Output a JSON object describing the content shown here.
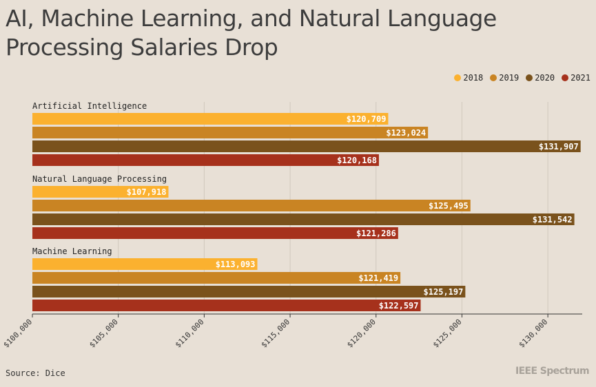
{
  "title": "AI, Machine Learning, and Natural Language Processing Salaries Drop",
  "source": "Source: Dice",
  "brand": "IEEE Spectrum",
  "legend": [
    "2018",
    "2019",
    "2020",
    "2021"
  ],
  "colors": {
    "2018": "#fbb12f",
    "2019": "#c98423",
    "2020": "#7a521c",
    "2021": "#a6311c",
    "gridline": "#d0c8bd",
    "axis": "#333333",
    "background": "#e8e0d6"
  },
  "chart_data": {
    "type": "bar",
    "orientation": "horizontal",
    "categories": [
      "Artificial Intelligence",
      "Natural Language Processing",
      "Machine Learning"
    ],
    "series": [
      {
        "name": "2018",
        "values": [
          120709,
          107918,
          113093
        ]
      },
      {
        "name": "2019",
        "values": [
          123024,
          125495,
          121419
        ]
      },
      {
        "name": "2020",
        "values": [
          131907,
          131542,
          125197
        ]
      },
      {
        "name": "2021",
        "values": [
          120168,
          121286,
          122597
        ]
      }
    ],
    "value_labels": [
      [
        "$120,709",
        "$123,024",
        "$131,907",
        "$120,168"
      ],
      [
        "$107,918",
        "$125,495",
        "$131,542",
        "$121,286"
      ],
      [
        "$113,093",
        "$121,419",
        "$125,197",
        "$122,597"
      ]
    ],
    "xlim": [
      100000,
      132000
    ],
    "xticks": [
      100000,
      105000,
      110000,
      115000,
      120000,
      125000,
      130000
    ],
    "xtick_labels": [
      "$100,000",
      "$105,000",
      "$110,000",
      "$115,000",
      "$120,000",
      "$125,000",
      "$130,000"
    ],
    "grid": true,
    "legend_position": "top-right"
  }
}
